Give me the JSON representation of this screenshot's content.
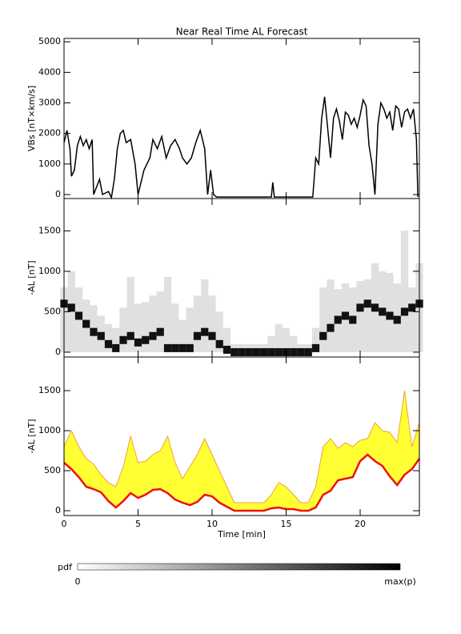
{
  "chart_data": [
    {
      "type": "line",
      "title": "Near Real Time AL Forecast",
      "ylabel": "VBs [nT×km/s]",
      "xlim": [
        0,
        24
      ],
      "xticks": [
        0,
        5,
        10,
        15,
        20
      ],
      "ylim": [
        -130,
        5110
      ],
      "yticks": [
        0,
        1000,
        2000,
        3000,
        4000,
        5000
      ],
      "x": [
        0,
        0.2,
        0.4,
        0.5,
        0.7,
        0.9,
        1.1,
        1.3,
        1.5,
        1.7,
        1.9,
        2.0,
        2.4,
        2.6,
        3.0,
        3.2,
        3.4,
        3.6,
        3.8,
        4.0,
        4.2,
        4.5,
        4.8,
        5.0,
        5.4,
        5.8,
        6.0,
        6.3,
        6.6,
        6.9,
        7.2,
        7.5,
        7.8,
        8.0,
        8.3,
        8.6,
        8.9,
        9.2,
        9.5,
        9.7,
        9.9,
        10.1,
        10.3,
        14.0,
        14.1,
        14.2,
        16.8,
        17.0,
        17.2,
        17.4,
        17.6,
        17.8,
        18.0,
        18.2,
        18.4,
        18.6,
        18.8,
        19.0,
        19.2,
        19.4,
        19.6,
        19.8,
        20.0,
        20.2,
        20.4,
        20.6,
        20.8,
        21.0,
        21.2,
        21.4,
        21.6,
        21.8,
        22.0,
        22.2,
        22.4,
        22.6,
        22.8,
        23.0,
        23.2,
        23.4,
        23.6,
        23.8,
        23.9
      ],
      "series": [
        {
          "color": "#000000",
          "values": [
            1700,
            2100,
            1500,
            600,
            800,
            1600,
            1900,
            1600,
            1800,
            1500,
            1800,
            0,
            500,
            0,
            100,
            -100,
            500,
            1500,
            2000,
            2100,
            1700,
            1800,
            1000,
            0,
            800,
            1200,
            1800,
            1500,
            1900,
            1200,
            1600,
            1800,
            1500,
            1200,
            1000,
            1200,
            1700,
            2100,
            1500,
            0,
            800,
            0,
            -80,
            -80,
            400,
            -80,
            -80,
            1200,
            1000,
            2500,
            3200,
            2200,
            1200,
            2500,
            2800,
            2400,
            1800,
            2700,
            2600,
            2300,
            2500,
            2200,
            2600,
            3100,
            2900,
            1600,
            1000,
            0,
            2300,
            3000,
            2800,
            2500,
            2700,
            2100,
            2900,
            2800,
            2200,
            2700,
            2800,
            2500,
            2800,
            1800,
            -80
          ]
        }
      ]
    },
    {
      "type": "heatmap",
      "ylabel": "-AL [nT]",
      "xlim": [
        0,
        24
      ],
      "xticks": [
        0,
        5,
        10,
        15,
        20
      ],
      "ylim": [
        -60,
        1900
      ],
      "yticks": [
        0,
        500,
        1000,
        1500
      ],
      "x": [
        0,
        0.5,
        1,
        1.5,
        2,
        2.5,
        3,
        3.5,
        4,
        4.5,
        5,
        5.5,
        6,
        6.5,
        7,
        7.5,
        8,
        8.5,
        9,
        9.5,
        10,
        10.5,
        11,
        11.5,
        12,
        12.5,
        13,
        13.5,
        14,
        14.5,
        15,
        15.5,
        16,
        16.5,
        17,
        17.5,
        18,
        18.5,
        19,
        19.5,
        20,
        20.5,
        21,
        21.5,
        22,
        22.5,
        23,
        23.5,
        24
      ],
      "values": [
        600,
        550,
        450,
        350,
        250,
        200,
        100,
        50,
        150,
        200,
        120,
        150,
        200,
        250,
        50,
        50,
        50,
        50,
        200,
        250,
        200,
        100,
        30,
        0,
        0,
        0,
        0,
        0,
        0,
        0,
        0,
        0,
        0,
        0,
        50,
        200,
        300,
        400,
        450,
        400,
        550,
        600,
        550,
        500,
        450,
        400,
        500,
        550,
        600
      ],
      "upper": [
        800,
        1000,
        800,
        650,
        580,
        450,
        350,
        300,
        550,
        930,
        600,
        620,
        700,
        750,
        930,
        600,
        400,
        550,
        700,
        900,
        700,
        500,
        300,
        100,
        100,
        100,
        100,
        100,
        200,
        350,
        300,
        200,
        100,
        100,
        300,
        800,
        900,
        780,
        850,
        800,
        880,
        900,
        1100,
        1000,
        980,
        850,
        1500,
        800,
        1100
      ]
    },
    {
      "type": "band",
      "ylabel": "-AL [nT]",
      "xlabel": "Time [min]",
      "xlim": [
        0,
        24
      ],
      "xticks": [
        0,
        5,
        10,
        15,
        20
      ],
      "ylim": [
        -60,
        1920
      ],
      "yticks": [
        0,
        500,
        1000,
        1500
      ],
      "color": "#ee1111",
      "band_color": "#ffff33",
      "edge_color": "#f0a040",
      "x": [
        0,
        0.5,
        1,
        1.5,
        2,
        2.5,
        3,
        3.5,
        4,
        4.5,
        5,
        5.5,
        6,
        6.5,
        7,
        7.5,
        8,
        8.5,
        9,
        9.5,
        10,
        10.5,
        11,
        11.5,
        12,
        12.5,
        13,
        13.5,
        14,
        14.5,
        15,
        15.5,
        16,
        16.5,
        17,
        17.5,
        18,
        18.5,
        19,
        19.5,
        20,
        20.5,
        21,
        21.5,
        22,
        22.5,
        23,
        23.5,
        24
      ],
      "values": [
        600,
        520,
        420,
        300,
        270,
        230,
        120,
        40,
        120,
        220,
        160,
        200,
        260,
        270,
        220,
        140,
        100,
        70,
        110,
        200,
        180,
        100,
        50,
        0,
        0,
        0,
        0,
        0,
        30,
        40,
        20,
        20,
        0,
        0,
        40,
        200,
        250,
        380,
        400,
        420,
        620,
        700,
        620,
        560,
        430,
        320,
        450,
        520,
        650
      ],
      "upper": [
        800,
        1000,
        800,
        650,
        580,
        450,
        350,
        300,
        550,
        930,
        600,
        620,
        700,
        750,
        930,
        600,
        400,
        550,
        700,
        900,
        700,
        500,
        300,
        100,
        100,
        100,
        100,
        100,
        200,
        350,
        300,
        200,
        100,
        100,
        300,
        800,
        900,
        780,
        850,
        800,
        880,
        900,
        1100,
        1000,
        980,
        850,
        1500,
        800,
        1100
      ]
    }
  ],
  "colorbar": {
    "label": "pdf",
    "min_label": "0",
    "max_label": "max(p)"
  }
}
